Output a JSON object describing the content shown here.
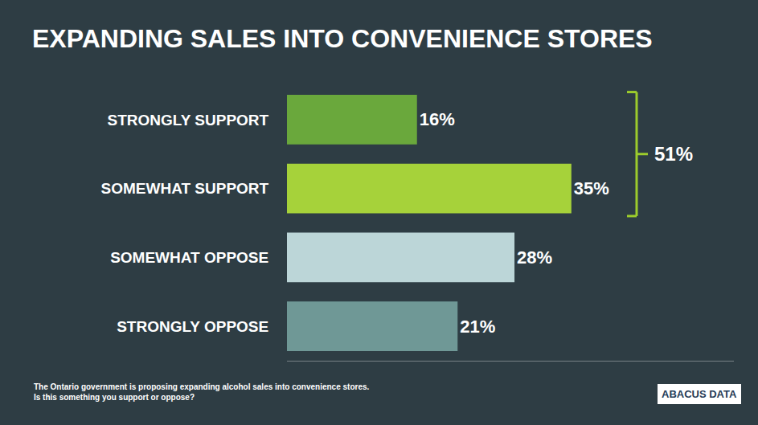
{
  "chart_data": {
    "type": "bar",
    "orientation": "horizontal",
    "title": "EXPANDING SALES INTO CONVENIENCE STORES",
    "categories": [
      "STRONGLY SUPPORT",
      "SOMEWHAT SUPPORT",
      "SOMEWHAT OPPOSE",
      "STRONGLY OPPOSE"
    ],
    "values": [
      16,
      35,
      28,
      21
    ],
    "value_labels": [
      "16%",
      "35%",
      "28%",
      "21%"
    ],
    "colors": [
      "#6aa83c",
      "#a6d23a",
      "#bcd6d8",
      "#6f9896"
    ],
    "data_labels": true,
    "tick_labels": "y",
    "xlim": [
      0,
      55
    ],
    "annotations": [
      {
        "text": "51%",
        "span": [
          "STRONGLY SUPPORT",
          "SOMEWHAT SUPPORT"
        ],
        "color": "#9ccc2c"
      }
    ],
    "caption": [
      "The Ontario government is proposing expanding alcohol sales into convenience stores.",
      "Is this something you support or oppose?"
    ],
    "source": "ABACUS DATA"
  }
}
